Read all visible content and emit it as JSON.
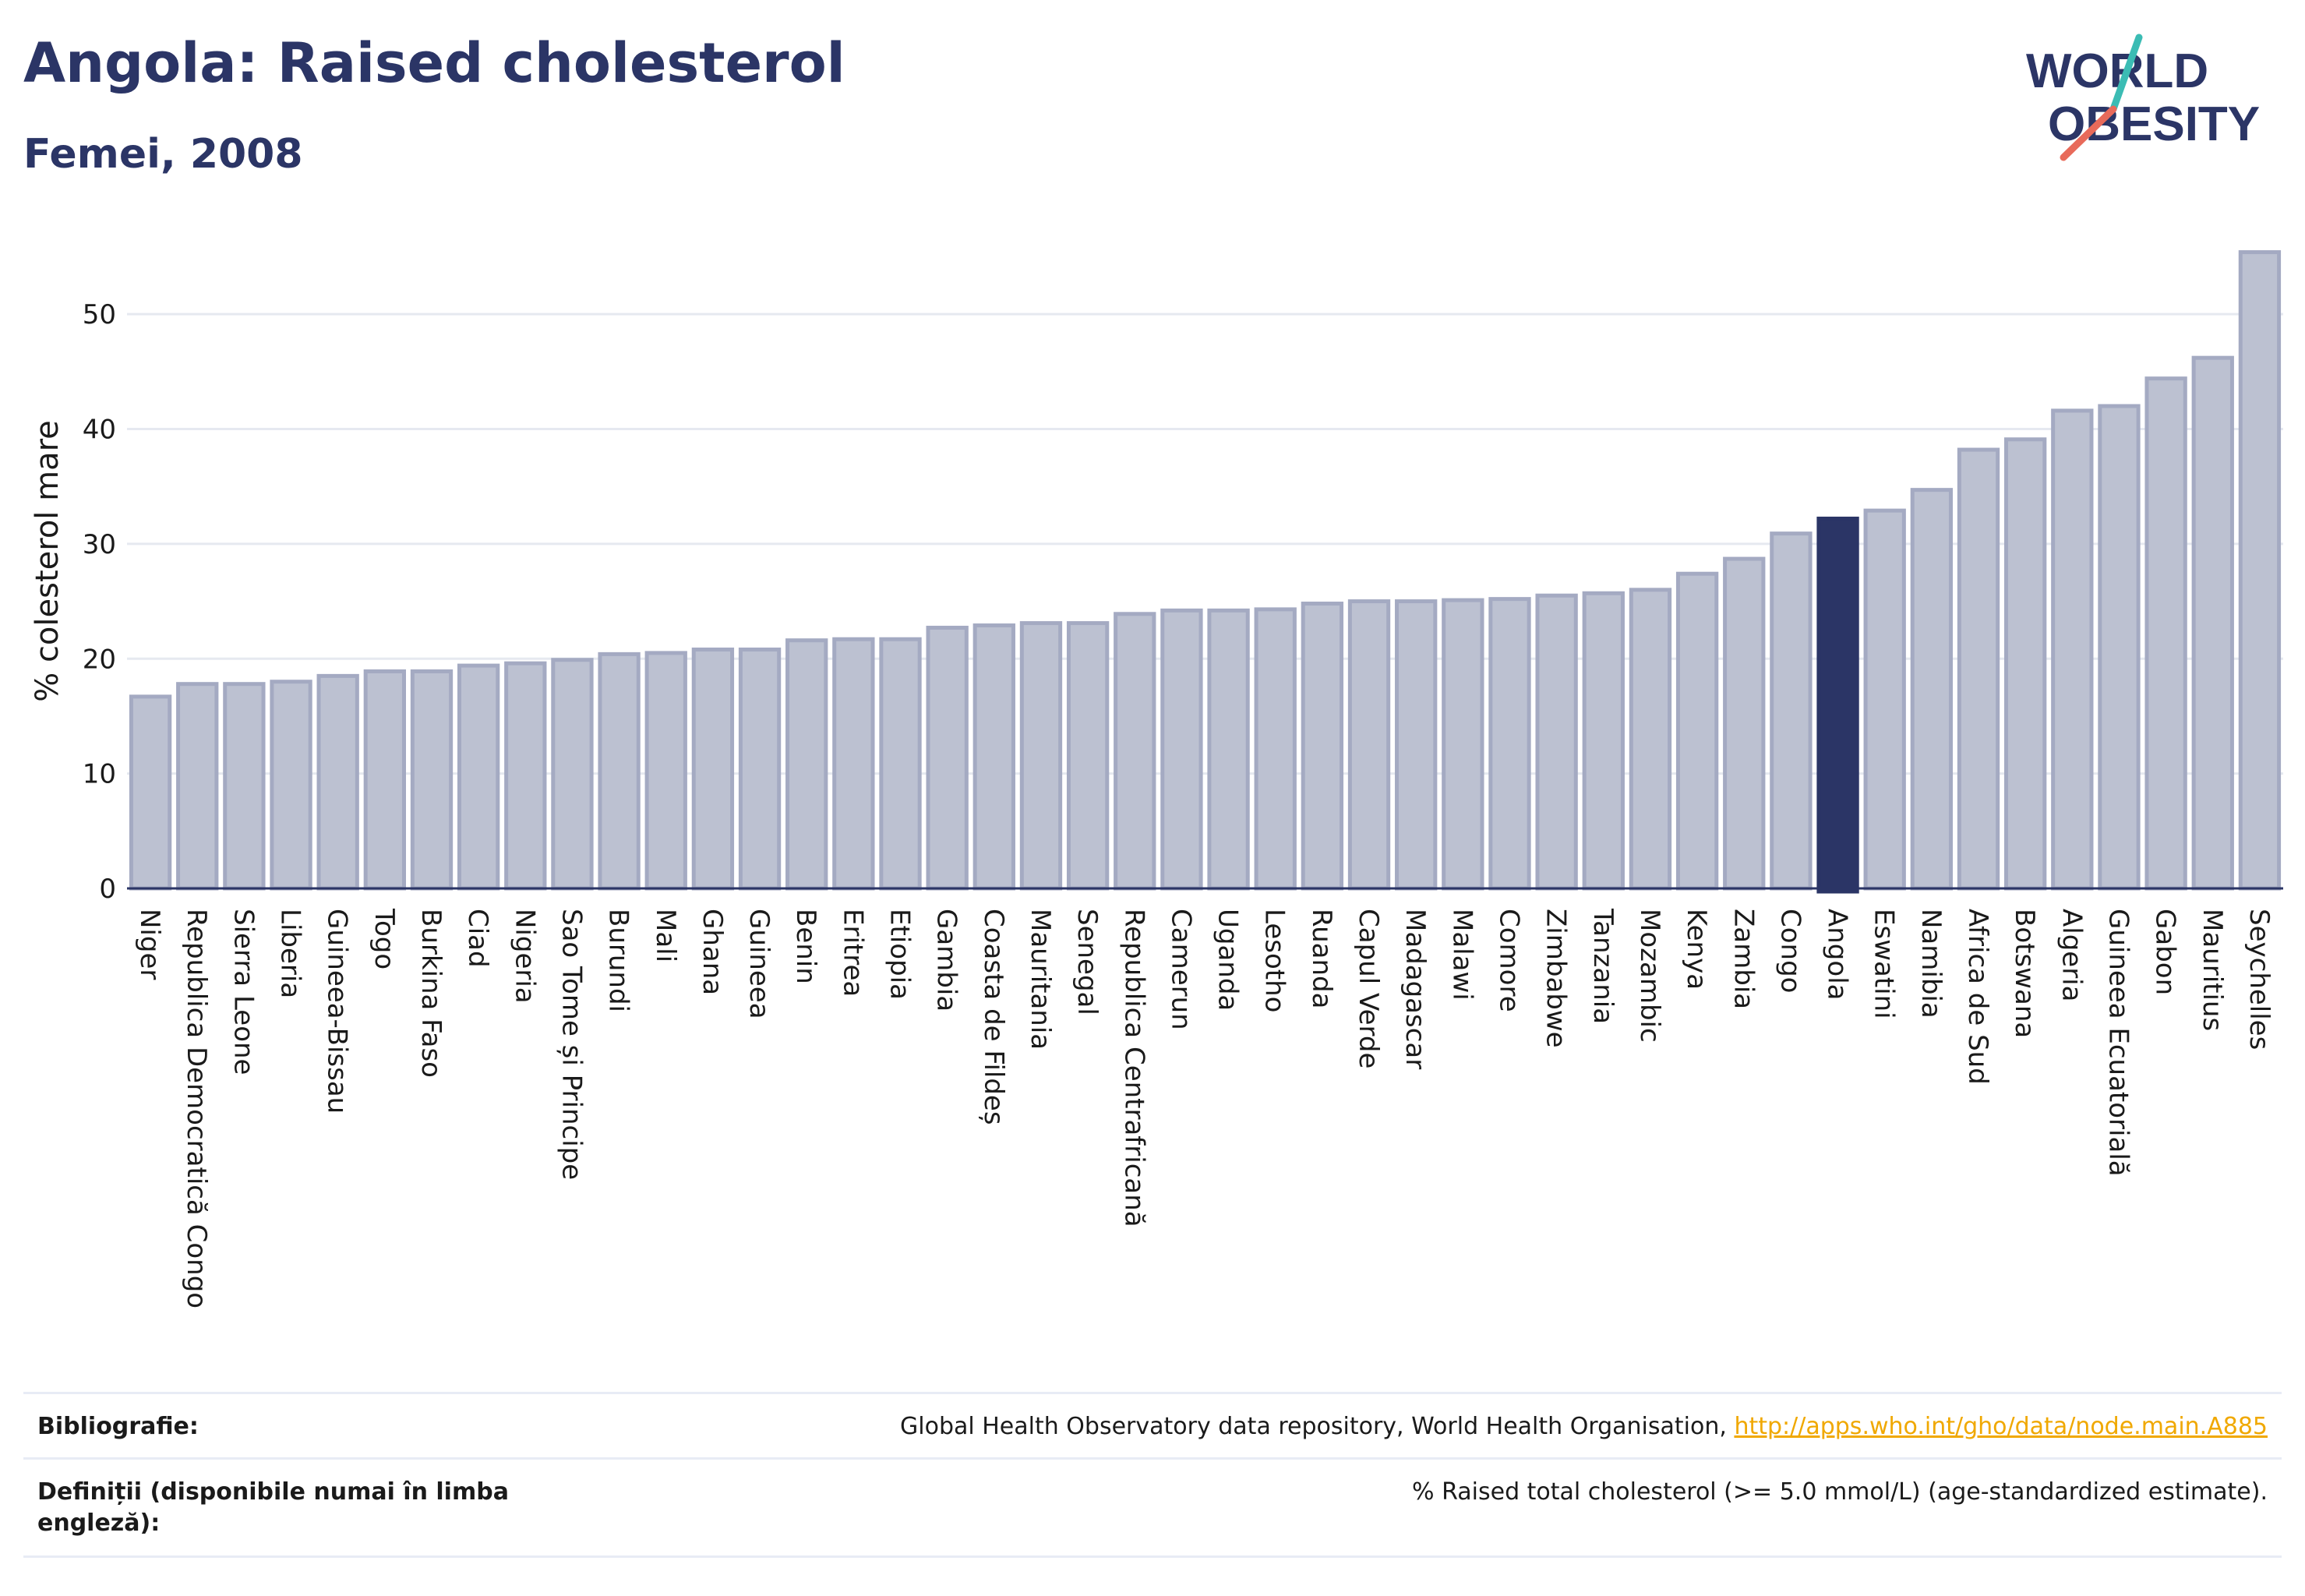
{
  "header": {
    "title": "Angola: Raised cholesterol",
    "subtitle": "Femei, 2008"
  },
  "logo": {
    "line1": "WORLD",
    "line2": "OBESITY",
    "accent_teal": "#3bbcb4",
    "accent_coral": "#e86a5a"
  },
  "colors": {
    "bar_default": "#bcc1d1",
    "bar_border": "#a4aac2",
    "bar_highlight": "#2b3566",
    "grid": "#e6e9f0"
  },
  "chart_data": {
    "type": "bar",
    "ylabel": "% colesterol mare",
    "ylim": [
      0,
      57
    ],
    "yticks": [
      0,
      10,
      20,
      30,
      40,
      50
    ],
    "grid": true,
    "highlight": "Angola",
    "categories": [
      "Niger",
      "Republica Democratică Congo",
      "Sierra Leone",
      "Liberia",
      "Guineea-Bissau",
      "Togo",
      "Burkina Faso",
      "Ciad",
      "Nigeria",
      "Sao Tome și Principe",
      "Burundi",
      "Mali",
      "Ghana",
      "Guineea",
      "Benin",
      "Eritrea",
      "Etiopia",
      "Gambia",
      "Coasta de Fildeș",
      "Mauritania",
      "Senegal",
      "Republica Centrafricană",
      "Camerun",
      "Uganda",
      "Lesotho",
      "Ruanda",
      "Capul Verde",
      "Madagascar",
      "Malawi",
      "Comore",
      "Zimbabwe",
      "Tanzania",
      "Mozambic",
      "Kenya",
      "Zambia",
      "Congo",
      "Angola",
      "Eswatini",
      "Namibia",
      "Africa de Sud",
      "Botswana",
      "Algeria",
      "Guineea Ecuatorială",
      "Gabon",
      "Mauritius",
      "Seychelles"
    ],
    "values": [
      16.7,
      17.8,
      17.8,
      18.0,
      18.5,
      18.9,
      18.9,
      19.4,
      19.6,
      19.9,
      20.4,
      20.5,
      20.8,
      20.8,
      21.6,
      21.7,
      21.7,
      22.7,
      22.9,
      23.1,
      23.1,
      23.9,
      24.2,
      24.2,
      24.3,
      24.8,
      25.0,
      25.0,
      25.1,
      25.2,
      25.5,
      25.7,
      26.0,
      27.4,
      28.7,
      30.9,
      32.2,
      32.9,
      34.7,
      38.2,
      39.1,
      41.6,
      42.0,
      44.4,
      46.2,
      55.4
    ]
  },
  "footer": {
    "bibliography_label": "Bibliografie:",
    "bibliography_text": "Global Health Observatory data repository, World Health Organisation, ",
    "bibliography_link": "http://apps.who.int/gho/data/node.main.A885",
    "definitions_label": "Definiții (disponibile numai în limba engleză):",
    "definitions_text": "% Raised total cholesterol (>= 5.0 mmol/L) (age-standardized estimate)."
  }
}
